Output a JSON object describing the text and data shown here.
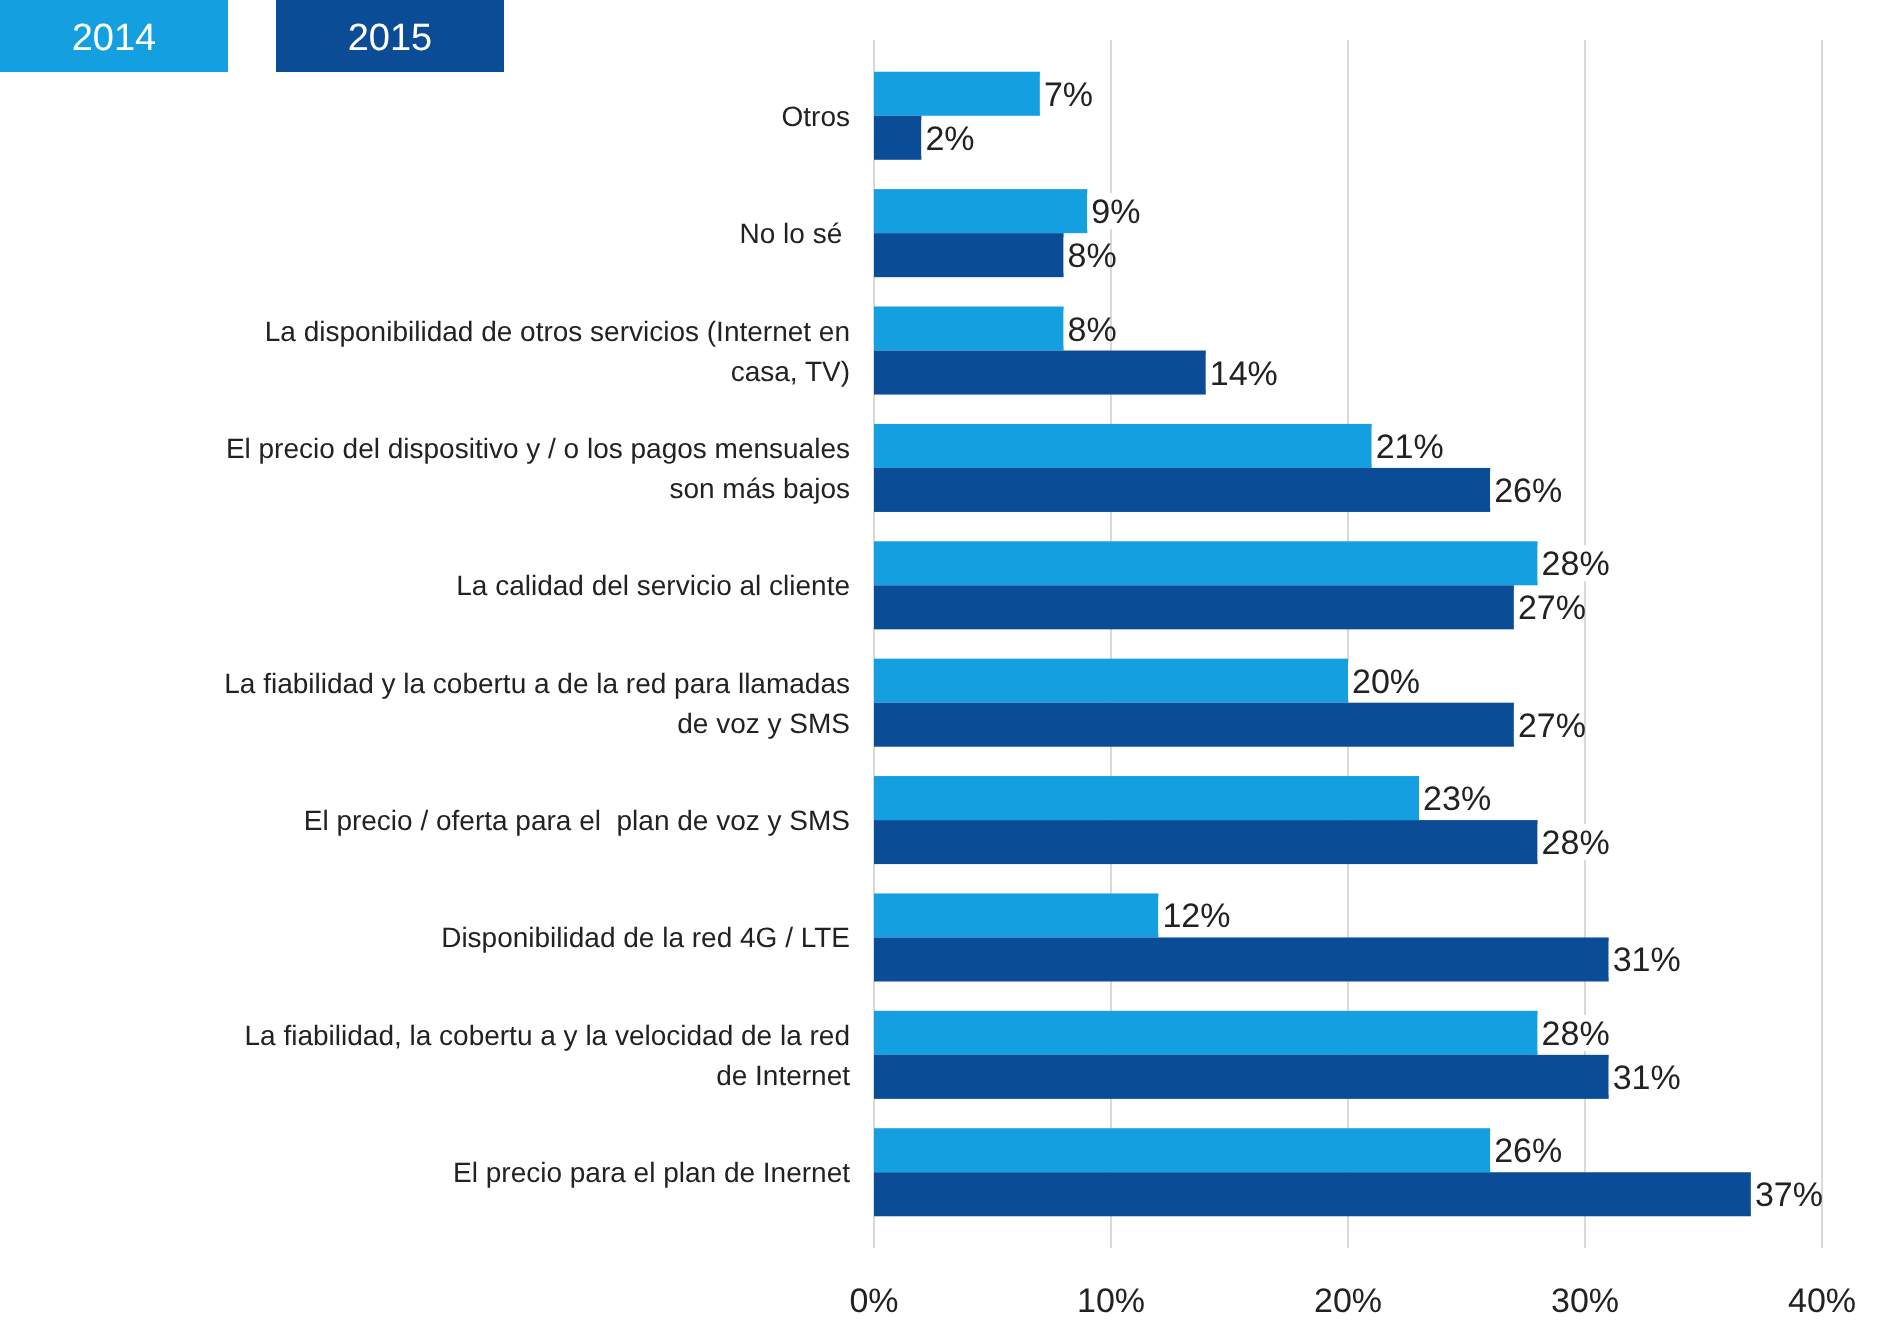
{
  "chart_data": {
    "type": "bar",
    "orientation": "horizontal",
    "categories": [
      "Otros",
      "No lo sé ",
      "La disponibilidad de otros servicios (Internet en casa, TV)",
      "El precio del dispositivo y / o los pagos mensuales son más bajos",
      "La calidad del servicio al cliente",
      "La fiabilidad y la cobertu a de la red para llamadas de voz y SMS",
      "El precio / oferta para el  plan de voz y SMS",
      "Disponibilidad de la red 4G / LTE",
      "La fiabilidad, la cobertu a y la velocidad de la red de Internet",
      "El precio para el plan de Inernet"
    ],
    "series": [
      {
        "name": "2014",
        "color": "#14a0e0",
        "values": [
          7,
          9,
          8,
          21,
          28,
          20,
          23,
          12,
          28,
          26
        ],
        "value_labels": [
          "7%",
          "9%",
          "8%",
          "21%",
          "28%",
          "20%",
          "23%",
          "12%",
          "28%",
          "26%"
        ]
      },
      {
        "name": "2015",
        "color": "#0b4c97",
        "values": [
          2,
          8,
          14,
          26,
          27,
          27,
          28,
          31,
          31,
          37
        ],
        "value_labels": [
          "2%",
          "8%",
          "14%",
          "26%",
          "27%",
          "27%",
          "28%",
          "31%",
          "31%",
          "37%"
        ]
      }
    ],
    "xlim": [
      0,
      40
    ],
    "xticks": [
      {
        "value": 0,
        "label": "0%"
      },
      {
        "value": 10,
        "label": "10%"
      },
      {
        "value": 20,
        "label": "20%"
      },
      {
        "value": 30,
        "label": "30%"
      },
      {
        "value": 40,
        "label": "40%"
      }
    ],
    "grid": "x",
    "legend": "top left"
  }
}
